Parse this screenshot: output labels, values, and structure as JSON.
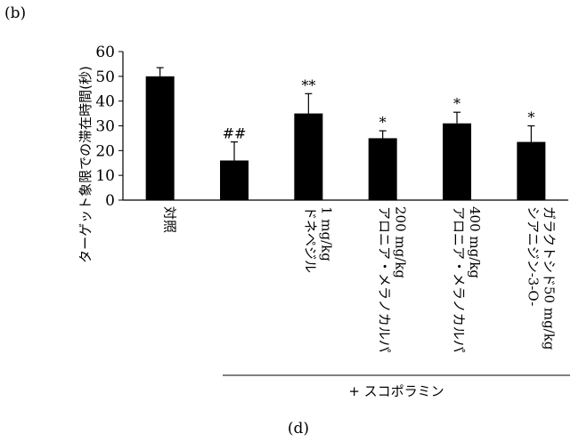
{
  "panel_label_top": "(b)",
  "panel_label_bottom": "(d)",
  "chart_data": {
    "type": "bar",
    "ylabel": "ターゲット象限での滞在時間(秒)",
    "ylim": [
      0,
      60
    ],
    "yticks": [
      0,
      10,
      20,
      30,
      40,
      50,
      60
    ],
    "grid": false,
    "bar_color": "#000000",
    "categories": [
      [
        "対照"
      ],
      [
        ""
      ],
      [
        "ドネペジル",
        "1 mg/kg"
      ],
      [
        "アロニア・メラノカルパ",
        "200 mg/kg"
      ],
      [
        "アロニア・メラノカルパ",
        "400 mg/kg"
      ],
      [
        "シアニジン-3-O-",
        "ガラクトシド50 mg/kg"
      ]
    ],
    "values": [
      50,
      16,
      35,
      25,
      31,
      23.5
    ],
    "errors": [
      3.5,
      7.5,
      8,
      3,
      4.5,
      6.5
    ],
    "significance": [
      "",
      "##",
      "**",
      "*",
      "*",
      "*"
    ],
    "group_label": "+ スコポラミン"
  }
}
